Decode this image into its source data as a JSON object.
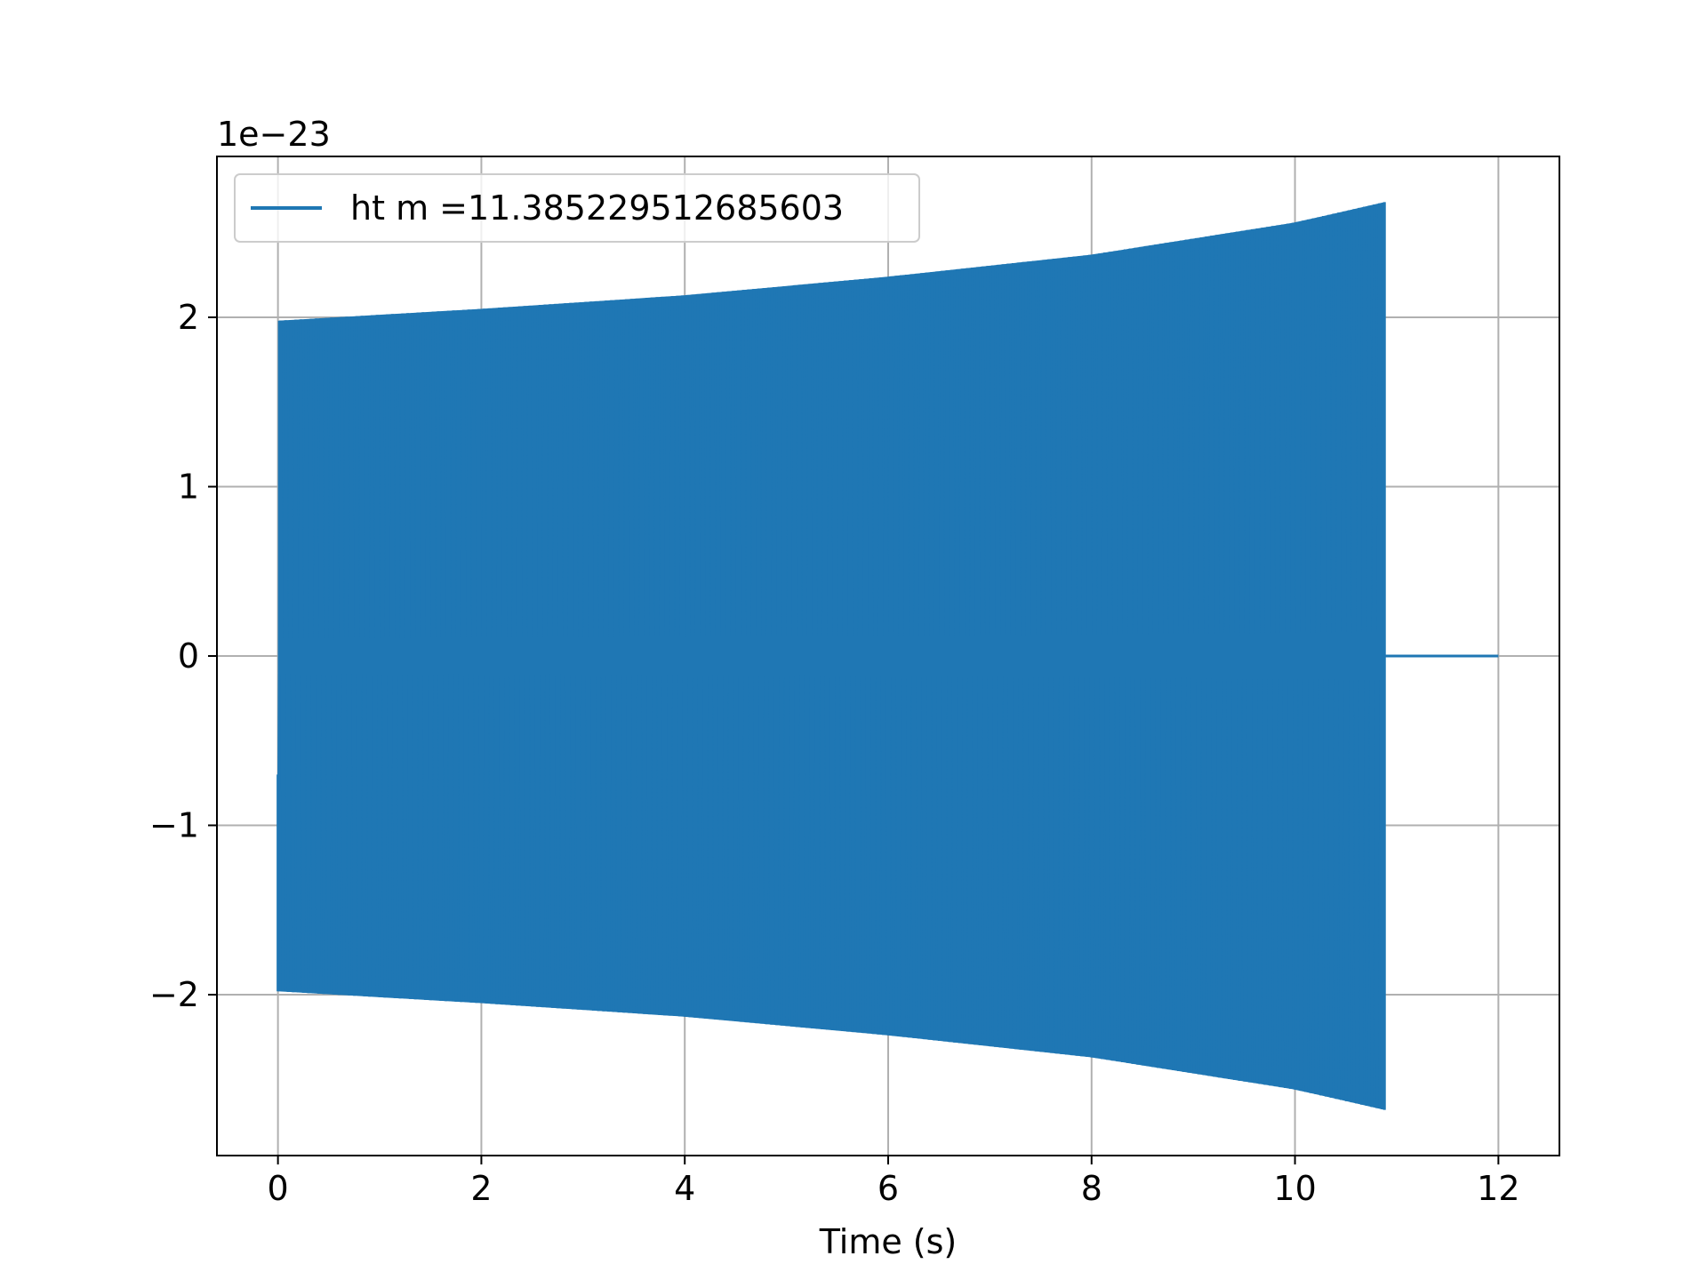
{
  "chart_data": {
    "type": "line",
    "xlabel": "Time (s)",
    "ylabel": "",
    "offset_text": "1e−23",
    "xlim": [
      -0.6,
      12.6
    ],
    "ylim": [
      -2.95,
      2.95
    ],
    "grid": true,
    "legend_position": "upper-left",
    "x_ticks": [
      0,
      2,
      4,
      6,
      8,
      10,
      12
    ],
    "x_tick_labels": [
      "0",
      "2",
      "4",
      "6",
      "8",
      "10",
      "12"
    ],
    "y_ticks": [
      -2,
      -1,
      0,
      1,
      2
    ],
    "y_tick_labels": [
      "−2",
      "−1",
      "0",
      "1",
      "2"
    ],
    "series": [
      {
        "name": "ht m =11.385229512685603",
        "color": "#1f77b4",
        "kind": "chirp-oscillation",
        "t_start": 0,
        "t_end": 10.88,
        "amplitude_start": 1.98,
        "amplitude_end": 2.68,
        "start_value": -0.7,
        "end_value": -1.35,
        "after_end_value": 0,
        "after_end_until": 12,
        "envelope_points": [
          {
            "t": 0,
            "amp": 1.98
          },
          {
            "t": 2,
            "amp": 2.05
          },
          {
            "t": 4,
            "amp": 2.13
          },
          {
            "t": 6,
            "amp": 2.24
          },
          {
            "t": 8,
            "amp": 2.37
          },
          {
            "t": 10,
            "amp": 2.56
          },
          {
            "t": 10.88,
            "amp": 2.68
          }
        ]
      }
    ]
  }
}
